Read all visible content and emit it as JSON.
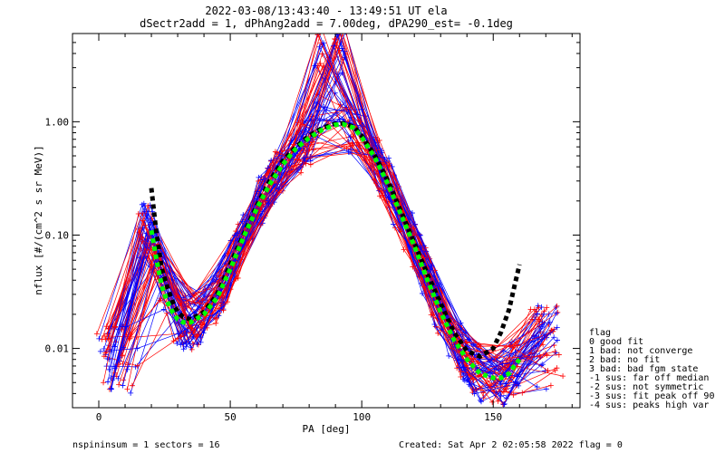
{
  "chart_data": {
    "type": "line",
    "title_line1": "2022-03-08/13:43:40 - 13:49:51 UT ela",
    "title_line2": "dSectr2add = 1, dPhAng2add = 7.00deg, dPA290_est=  -0.1deg",
    "xlabel": "PA [deg]",
    "ylabel": "nflux [#/(cm^2 s sr MeV)]",
    "xlim": [
      -10,
      183
    ],
    "ylim": [
      0.003,
      6.0
    ],
    "yscale": "log",
    "x_ticks": [
      0,
      50,
      100,
      150
    ],
    "x_tick_labels": [
      "0",
      "50",
      "100",
      "150"
    ],
    "y_ticks": [
      0.01,
      0.1,
      1.0
    ],
    "y_tick_labels": [
      "0.01",
      "0.10",
      "1.00"
    ],
    "colors": {
      "red_curves": "#ff0000",
      "blue_curves": "#0000ff",
      "fit_black": "#000000",
      "fit_green": "#00ff00"
    },
    "series": [
      {
        "color": "#000000",
        "style": "thick-dashed",
        "x": [
          20,
          22,
          24,
          26,
          28,
          30,
          32,
          35,
          40,
          45,
          50,
          55,
          60,
          65,
          70,
          75,
          80,
          85,
          90,
          93,
          97,
          100,
          105,
          110,
          115,
          120,
          125,
          130,
          135,
          140,
          145,
          150,
          153,
          156,
          158,
          160
        ],
        "y": [
          0.26,
          0.1,
          0.05,
          0.035,
          0.026,
          0.021,
          0.019,
          0.018,
          0.021,
          0.03,
          0.055,
          0.1,
          0.18,
          0.3,
          0.45,
          0.6,
          0.75,
          0.88,
          0.96,
          0.97,
          0.9,
          0.75,
          0.5,
          0.3,
          0.16,
          0.085,
          0.045,
          0.025,
          0.014,
          0.0095,
          0.0085,
          0.01,
          0.014,
          0.022,
          0.035,
          0.055
        ]
      },
      {
        "color": "#00ff00",
        "style": "thick-dashed",
        "x": [
          20,
          22,
          24,
          26,
          28,
          30,
          32,
          35,
          40,
          45,
          50,
          55,
          60,
          65,
          70,
          75,
          80,
          85,
          90,
          93,
          97,
          100,
          105,
          110,
          115,
          120,
          125,
          130,
          135,
          140,
          145,
          150,
          153,
          156,
          158,
          160
        ],
        "y": [
          0.11,
          0.06,
          0.035,
          0.026,
          0.021,
          0.018,
          0.017,
          0.017,
          0.02,
          0.028,
          0.05,
          0.095,
          0.17,
          0.28,
          0.42,
          0.58,
          0.72,
          0.85,
          0.94,
          0.95,
          0.88,
          0.73,
          0.48,
          0.28,
          0.15,
          0.08,
          0.04,
          0.021,
          0.012,
          0.008,
          0.006,
          0.0055,
          0.0055,
          0.006,
          0.007,
          0.008
        ]
      }
    ],
    "legend": {
      "title": "flag",
      "entries": [
        " 0 good fit",
        " 1 bad: not converge",
        " 2 bad: no fit",
        " 3 bad: bad fgm state",
        "-1 sus: far off median",
        "-2 sus: not symmetric",
        "-3 sus: fit peak off 90",
        "-4 sus: peaks high var"
      ],
      "placement": "right"
    }
  },
  "footer": {
    "left": "nspininsum =  1  sectors = 16",
    "right": "Created: Sat Apr  2 02:05:58 2022   flag = 0"
  }
}
